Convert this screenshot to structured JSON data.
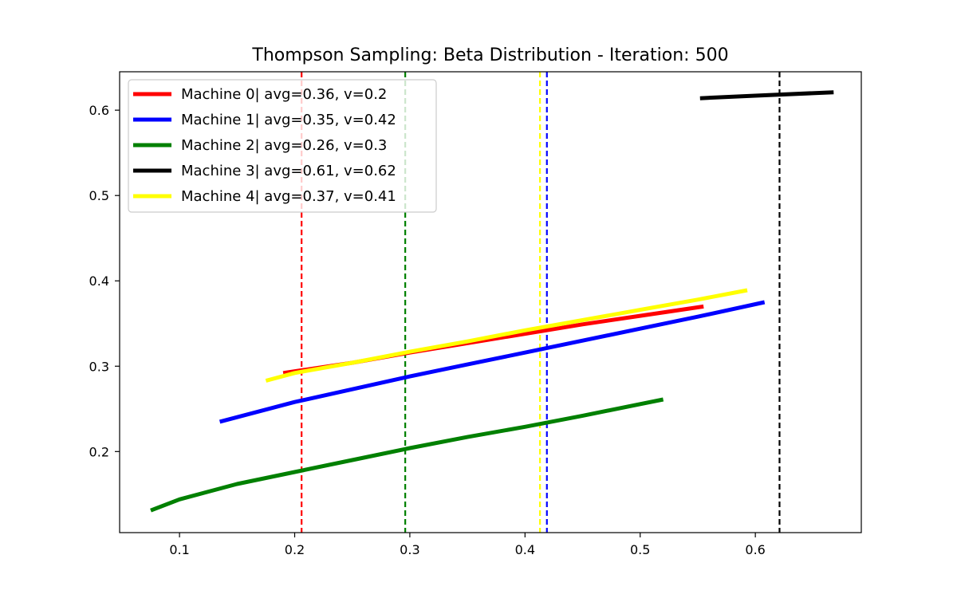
{
  "chart_data": {
    "type": "line",
    "title": "Thompson Sampling: Beta Distribution - Iteration: 500",
    "xlabel": "",
    "ylabel": "",
    "xlim": [
      0.048,
      0.692
    ],
    "ylim": [
      0.105,
      0.645
    ],
    "xticks": [
      0.1,
      0.2,
      0.3,
      0.4,
      0.5,
      0.6
    ],
    "xtick_labels": [
      "0.1",
      "0.2",
      "0.3",
      "0.4",
      "0.5",
      "0.6"
    ],
    "yticks": [
      0.2,
      0.3,
      0.4,
      0.5,
      0.6
    ],
    "ytick_labels": [
      "0.2",
      "0.3",
      "0.4",
      "0.5",
      "0.6"
    ],
    "grid": false,
    "legend_position": "top-left",
    "series": [
      {
        "name": "Machine 0| avg=0.36, v=0.2",
        "color": "#ff0000",
        "x": [
          0.19,
          0.25,
          0.3,
          0.35,
          0.4,
          0.45,
          0.5,
          0.555
        ],
        "y": [
          0.292,
          0.304,
          0.316,
          0.327,
          0.338,
          0.349,
          0.359,
          0.37
        ],
        "vline": 0.206
      },
      {
        "name": "Machine 1| avg=0.35, v=0.42",
        "color": "#0000ff",
        "x": [
          0.135,
          0.2,
          0.25,
          0.3,
          0.35,
          0.4,
          0.45,
          0.5,
          0.55,
          0.608
        ],
        "y": [
          0.235,
          0.258,
          0.273,
          0.288,
          0.302,
          0.316,
          0.33,
          0.344,
          0.358,
          0.375
        ],
        "vline": 0.419
      },
      {
        "name": "Machine 2| avg=0.26, v=0.3",
        "color": "#008000",
        "x": [
          0.075,
          0.1,
          0.15,
          0.2,
          0.25,
          0.3,
          0.35,
          0.4,
          0.45,
          0.52
        ],
        "y": [
          0.131,
          0.144,
          0.162,
          0.176,
          0.19,
          0.204,
          0.217,
          0.229,
          0.242,
          0.261
        ],
        "vline": 0.296
      },
      {
        "name": "Machine 3| avg=0.61, v=0.62",
        "color": "#000000",
        "x": [
          0.552,
          0.6,
          0.668
        ],
        "y": [
          0.614,
          0.617,
          0.621
        ],
        "vline": 0.621
      },
      {
        "name": "Machine 4| avg=0.37, v=0.41",
        "color": "#ffff00",
        "x": [
          0.175,
          0.2,
          0.25,
          0.3,
          0.35,
          0.4,
          0.45,
          0.5,
          0.55,
          0.593
        ],
        "y": [
          0.283,
          0.292,
          0.304,
          0.317,
          0.329,
          0.342,
          0.354,
          0.366,
          0.378,
          0.389
        ],
        "vline": 0.413
      }
    ]
  }
}
